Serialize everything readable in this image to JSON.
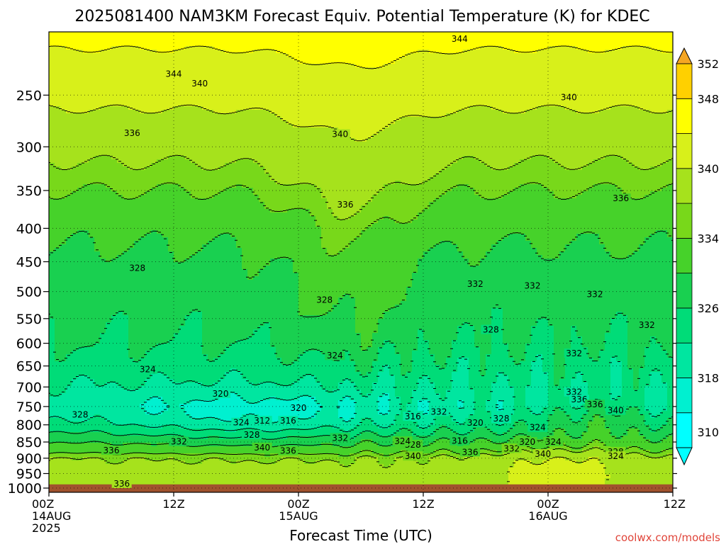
{
  "chart_data": {
    "type": "heatmap",
    "title": "2025081400 NAM3KM Forecast Equiv. Potential Temperature (K) for KDEC",
    "xlabel": "Forecast Time (UTC)",
    "ylabel": "",
    "x_ticks": [
      {
        "hour": 0,
        "lines": [
          "00Z",
          "14AUG",
          "2025"
        ]
      },
      {
        "hour": 12,
        "lines": [
          "12Z"
        ]
      },
      {
        "hour": 24,
        "lines": [
          "00Z",
          "15AUG"
        ]
      },
      {
        "hour": 36,
        "lines": [
          "12Z"
        ]
      },
      {
        "hour": 48,
        "lines": [
          "00Z",
          "16AUG"
        ]
      },
      {
        "hour": 60,
        "lines": [
          "12Z"
        ]
      }
    ],
    "xlim": [
      0,
      60
    ],
    "y_ticks": [
      250,
      300,
      350,
      400,
      450,
      500,
      550,
      600,
      650,
      700,
      750,
      800,
      850,
      900,
      950,
      1000
    ],
    "ylim": [
      200,
      1015
    ],
    "y_scale": "log (pressure, hPa)",
    "ground_level_hpa": 987,
    "colorbar": {
      "levels": [
        310,
        314,
        318,
        322,
        326,
        330,
        334,
        336,
        340,
        344,
        348,
        352
      ],
      "colors": [
        "#00ffff",
        "#00f0d0",
        "#00e6a0",
        "#00dc78",
        "#19d050",
        "#46d22a",
        "#78d81a",
        "#a6e21c",
        "#d8f01a",
        "#ffff00",
        "#ffd000",
        "#f5a623"
      ],
      "under_color": "#00ffff",
      "over_color": "#f5a623"
    },
    "profile": {
      "pressure": [
        200,
        250,
        300,
        350,
        400,
        450,
        500,
        550,
        600,
        650,
        700,
        750,
        800,
        850,
        900,
        950,
        1000
      ],
      "theta_e": [
        345,
        341,
        337,
        334,
        331,
        329,
        328,
        327,
        326,
        324,
        322,
        320,
        324,
        330,
        336,
        337,
        338
      ]
    },
    "contour_labels": [
      {
        "value": "344",
        "hour": 12,
        "p": 232
      },
      {
        "value": "344",
        "hour": 39.5,
        "p": 205
      },
      {
        "value": "340",
        "hour": 14.5,
        "p": 240
      },
      {
        "value": "340",
        "hour": 50,
        "p": 252
      },
      {
        "value": "340",
        "hour": 28,
        "p": 287
      },
      {
        "value": "336",
        "hour": 8,
        "p": 286
      },
      {
        "value": "336",
        "hour": 28.5,
        "p": 368
      },
      {
        "value": "336",
        "hour": 55,
        "p": 360
      },
      {
        "value": "332",
        "hour": 41,
        "p": 487
      },
      {
        "value": "332",
        "hour": 46.5,
        "p": 490
      },
      {
        "value": "332",
        "hour": 52.5,
        "p": 505
      },
      {
        "value": "332",
        "hour": 57.5,
        "p": 563
      },
      {
        "value": "332",
        "hour": 50.5,
        "p": 622
      },
      {
        "value": "332",
        "hour": 37.5,
        "p": 764
      },
      {
        "value": "332",
        "hour": 50.5,
        "p": 713
      },
      {
        "value": "332",
        "hour": 12.5,
        "p": 849
      },
      {
        "value": "332",
        "hour": 28,
        "p": 838
      },
      {
        "value": "332",
        "hour": 44.5,
        "p": 870
      },
      {
        "value": "328",
        "hour": 8.5,
        "p": 460
      },
      {
        "value": "328",
        "hour": 26.5,
        "p": 515
      },
      {
        "value": "328",
        "hour": 42.5,
        "p": 572
      },
      {
        "value": "328",
        "hour": 3,
        "p": 772
      },
      {
        "value": "328",
        "hour": 19.5,
        "p": 829
      },
      {
        "value": "328",
        "hour": 43.5,
        "p": 783
      },
      {
        "value": "328",
        "hour": 54.5,
        "p": 880
      },
      {
        "value": "328",
        "hour": 35,
        "p": 858
      },
      {
        "value": "324",
        "hour": 9.5,
        "p": 658
      },
      {
        "value": "324",
        "hour": 27.5,
        "p": 627
      },
      {
        "value": "324",
        "hour": 18.5,
        "p": 794
      },
      {
        "value": "324",
        "hour": 34,
        "p": 848
      },
      {
        "value": "324",
        "hour": 47,
        "p": 808
      },
      {
        "value": "324",
        "hour": 48.5,
        "p": 850
      },
      {
        "value": "324",
        "hour": 54.5,
        "p": 894
      },
      {
        "value": "320",
        "hour": 16.5,
        "p": 717
      },
      {
        "value": "320",
        "hour": 24,
        "p": 754
      },
      {
        "value": "320",
        "hour": 41,
        "p": 795
      },
      {
        "value": "320",
        "hour": 46,
        "p": 850
      },
      {
        "value": "316",
        "hour": 39.5,
        "p": 847
      },
      {
        "value": "316",
        "hour": 35,
        "p": 777
      },
      {
        "value": "316",
        "hour": 23,
        "p": 789
      },
      {
        "value": "312",
        "hour": 20.5,
        "p": 789
      },
      {
        "value": "336",
        "hour": 6,
        "p": 876
      },
      {
        "value": "336",
        "hour": 23,
        "p": 877
      },
      {
        "value": "336",
        "hour": 40.5,
        "p": 881
      },
      {
        "value": "336",
        "hour": 51,
        "p": 732
      },
      {
        "value": "336",
        "hour": 52.5,
        "p": 745
      },
      {
        "value": "340",
        "hour": 20.5,
        "p": 867
      },
      {
        "value": "340",
        "hour": 35,
        "p": 894
      },
      {
        "value": "340",
        "hour": 47.5,
        "p": 887
      },
      {
        "value": "340",
        "hour": 54.5,
        "p": 761
      },
      {
        "value": "336",
        "hour": 7,
        "p": 985
      }
    ]
  },
  "footer": {
    "credit": "coolwx.com/models"
  }
}
